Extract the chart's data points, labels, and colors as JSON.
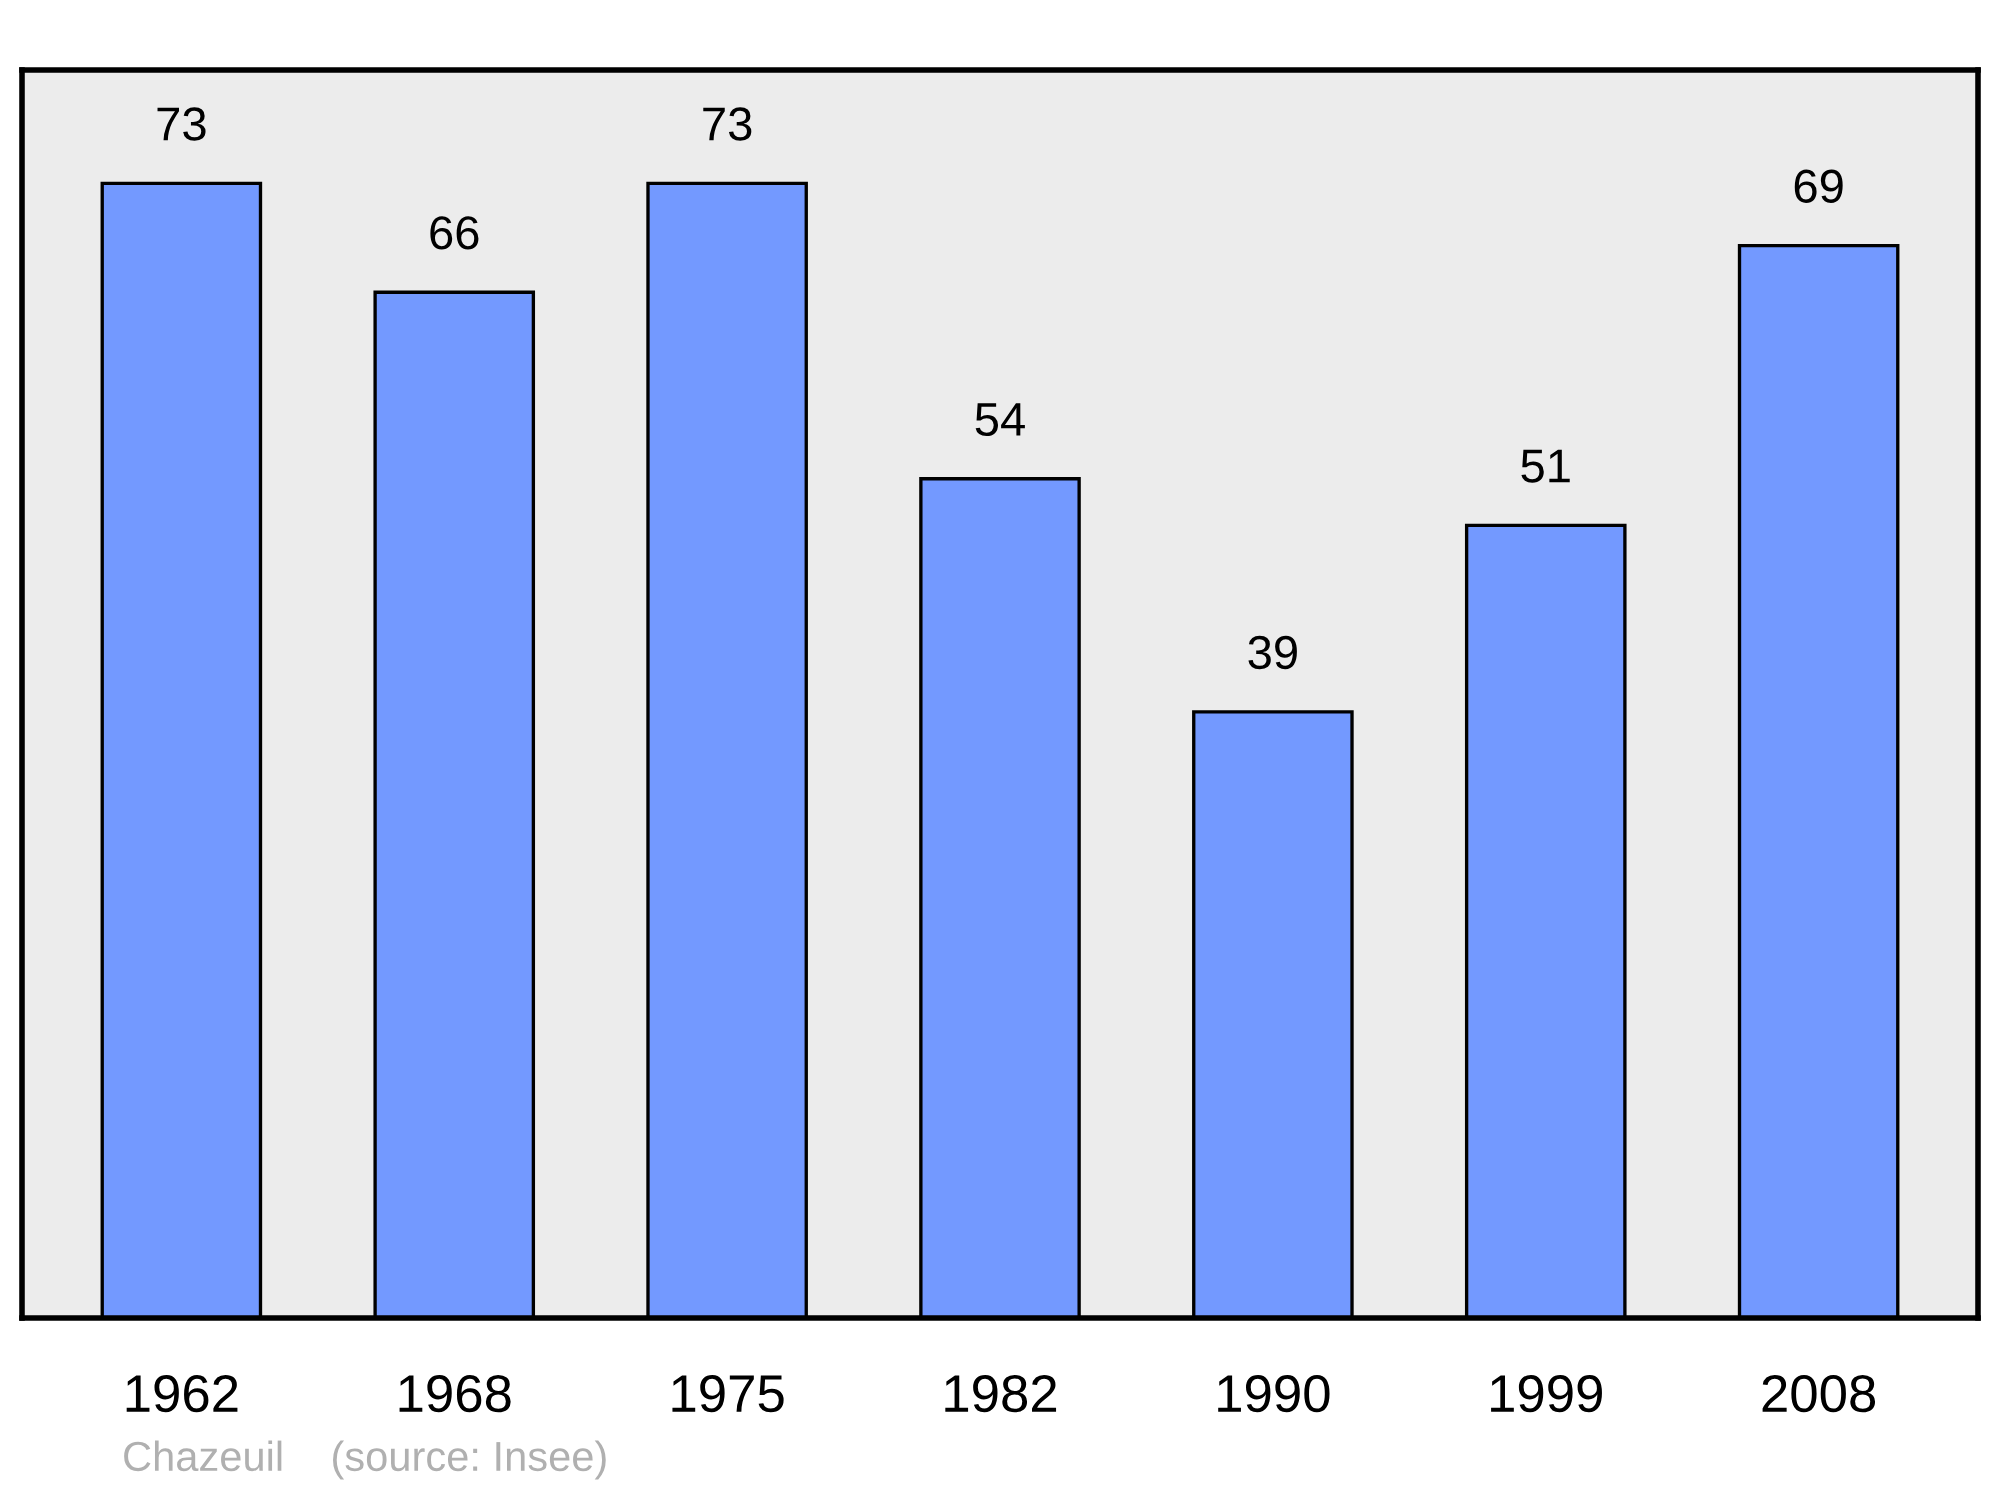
{
  "chart_data": {
    "type": "bar",
    "categories": [
      "1962",
      "1968",
      "1975",
      "1982",
      "1990",
      "1999",
      "2008"
    ],
    "values": [
      73,
      66,
      73,
      54,
      39,
      51,
      69
    ],
    "color": "#7399ff",
    "data_labels": true,
    "grid": false,
    "tick_labels": "x",
    "annotations": [
      "Chazeuil    (source: Insee)"
    ]
  }
}
